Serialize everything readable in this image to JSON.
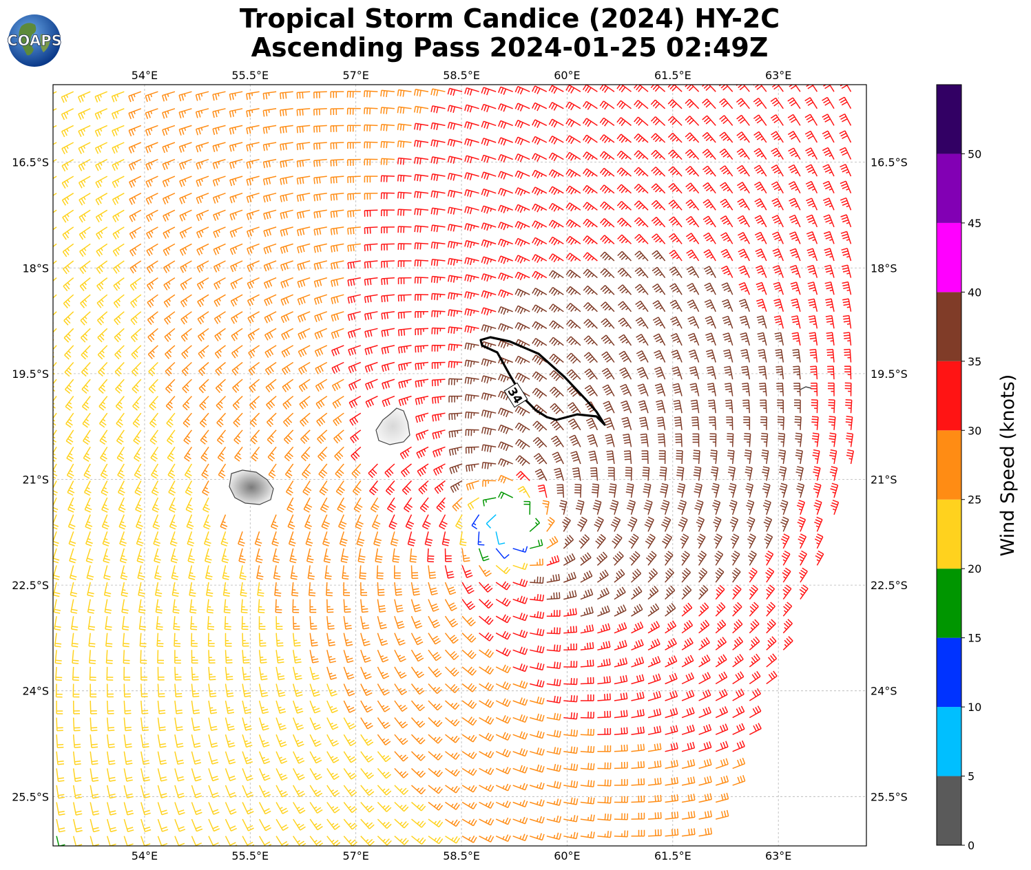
{
  "title": {
    "line1": "Tropical Storm Candice (2024) HY-2C",
    "line2": "Ascending Pass 2024-01-25 02:49Z"
  },
  "logo": {
    "text": "COAPS",
    "icon": "globe-logo-icon"
  },
  "map": {
    "lon_labels": [
      "54°E",
      "55.5°E",
      "57°E",
      "58.5°E",
      "60°E",
      "61.5°E",
      "63°E"
    ],
    "lat_labels": [
      "16.5°S",
      "18°S",
      "19.5°S",
      "21°S",
      "22.5°S",
      "24°S",
      "25.5°S"
    ],
    "lon_values": [
      54,
      55.5,
      57,
      58.5,
      60,
      61.5,
      63
    ],
    "lat_values": [
      -16.5,
      -18,
      -19.5,
      -21,
      -22.5,
      -24,
      -25.5
    ],
    "lon_range": [
      52.7,
      64.25
    ],
    "lat_range": [
      -15.4,
      -26.2
    ],
    "storm_center": {
      "lon": 59.2,
      "lat": -21.6
    },
    "contour_label": "34",
    "islands": [
      "Réunion",
      "Mauritius"
    ],
    "gridlines": true,
    "swath": "ascending pass, eastern edge clipped"
  },
  "colorbar": {
    "label": "Wind Speed (knots)",
    "ticks": [
      "0",
      "5",
      "10",
      "15",
      "20",
      "25",
      "30",
      "35",
      "40",
      "45",
      "50"
    ],
    "bins": [
      {
        "from": 0,
        "to": 5,
        "color": "#5a5a5a"
      },
      {
        "from": 5,
        "to": 10,
        "color": "#00bfff"
      },
      {
        "from": 10,
        "to": 15,
        "color": "#0033ff"
      },
      {
        "from": 15,
        "to": 20,
        "color": "#009600"
      },
      {
        "from": 20,
        "to": 25,
        "color": "#ffd21e"
      },
      {
        "from": 25,
        "to": 30,
        "color": "#ff8c14"
      },
      {
        "from": 30,
        "to": 35,
        "color": "#ff1414"
      },
      {
        "from": 35,
        "to": 40,
        "color": "#803c28"
      },
      {
        "from": 40,
        "to": 45,
        "color": "#ff00ff"
      },
      {
        "from": 45,
        "to": 50,
        "color": "#8200b4"
      },
      {
        "from": 50,
        "to": 55,
        "color": "#320064"
      }
    ]
  },
  "wind_field": {
    "type": "barbs",
    "units": "knots",
    "max_wind_kt": 37,
    "rmw_deg": 0.9,
    "decay_deg": 4.5,
    "bg_kt": 23
  }
}
